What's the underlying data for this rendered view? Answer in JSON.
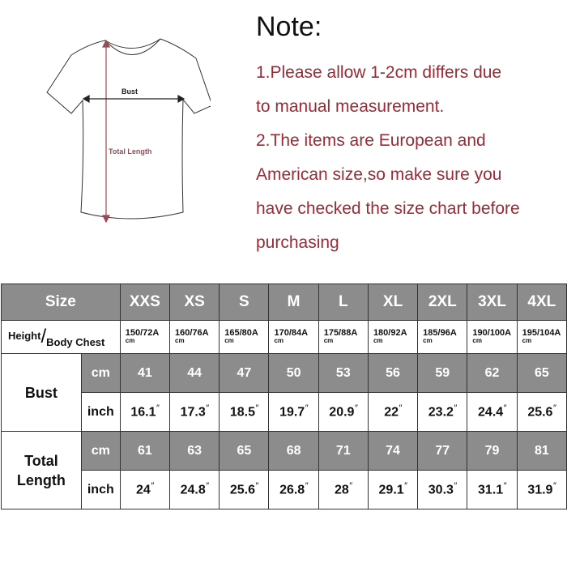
{
  "diagram": {
    "bust_label": "Bust",
    "length_label": "Total Length",
    "arrow_color": "#9a4a55"
  },
  "note": {
    "title": "Note:",
    "lines": [
      "1.Please allow 1-2cm differs due",
      "to manual measurement.",
      "2.The items are European and",
      "American size,so make sure you",
      "have checked the size chart before",
      "purchasing"
    ],
    "color": "#9a2a35"
  },
  "table": {
    "size_label": "Size",
    "sizes": [
      "XXS",
      "XS",
      "S",
      "M",
      "L",
      "XL",
      "2XL",
      "3XL",
      "4XL"
    ],
    "height_label": "Height",
    "chest_label": "Body Chest",
    "slash": "/",
    "height_chest": [
      "150/72A",
      "160/76A",
      "165/80A",
      "170/84A",
      "175/88A",
      "180/92A",
      "185/96A",
      "190/100A",
      "195/104A"
    ],
    "unit_cm": "cm",
    "unit_inch": "inch",
    "inch_mark": "″",
    "bust_label": "Bust",
    "bust_cm": [
      "41",
      "44",
      "47",
      "50",
      "53",
      "56",
      "59",
      "62",
      "65"
    ],
    "bust_inch": [
      "16.1",
      "17.3",
      "18.5",
      "19.7",
      "20.9",
      "22",
      "23.2",
      "24.4",
      "25.6"
    ],
    "length_label_1": "Total",
    "length_label_2": "Length",
    "length_cm": [
      "61",
      "63",
      "65",
      "68",
      "71",
      "74",
      "77",
      "79",
      "81"
    ],
    "length_inch": [
      "24",
      "24.8",
      "25.6",
      "26.8",
      "28",
      "29.1",
      "30.3",
      "31.1",
      "31.9"
    ],
    "header_color": "#8c8c8c"
  }
}
